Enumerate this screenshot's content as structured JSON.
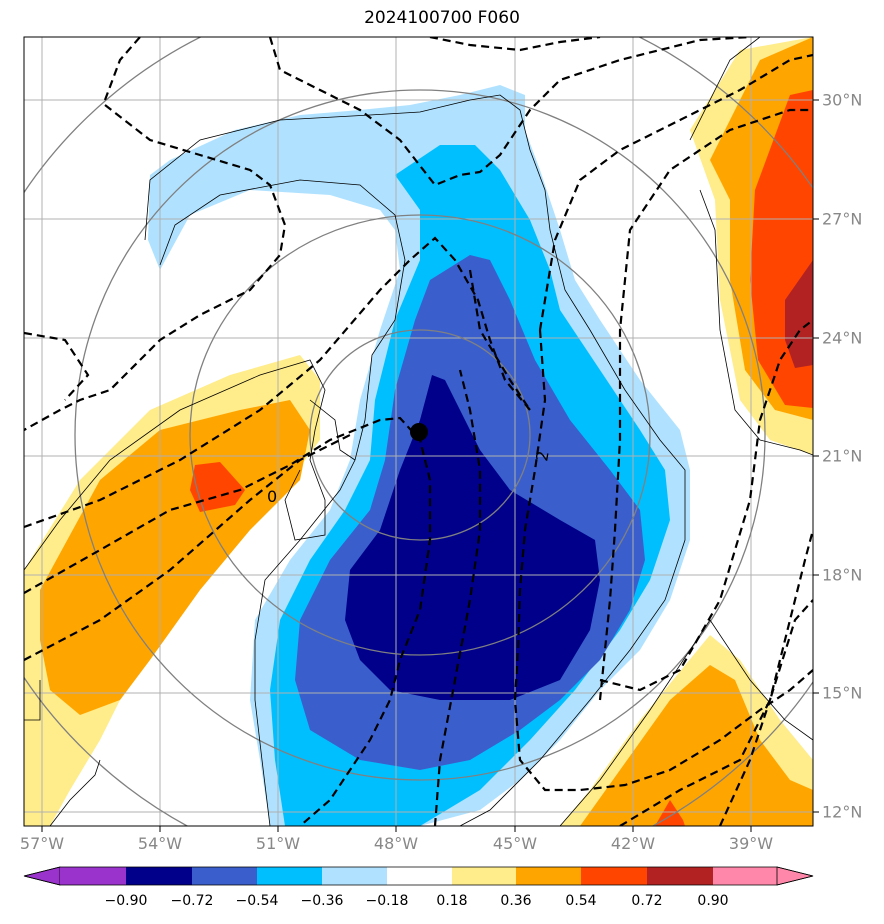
{
  "title": "2024100700 F060",
  "chart_data": {
    "type": "heatmap",
    "title": "2024100700 F060",
    "lon_ticks": [
      "57°W",
      "54°W",
      "51°W",
      "48°W",
      "45°W",
      "42°W",
      "39°W"
    ],
    "lat_ticks": [
      "30°N",
      "27°N",
      "24°N",
      "21°N",
      "18°N",
      "15°N",
      "12°N"
    ],
    "contour_labels": [
      "0",
      "2"
    ],
    "grid": true,
    "colorbar": {
      "ticks": [
        "−0.90",
        "−0.72",
        "−0.54",
        "−0.36",
        "−0.18",
        "0.18",
        "0.36",
        "0.54",
        "0.72",
        "0.90"
      ],
      "colors": [
        "#9933cc",
        "#00008b",
        "#3a5fcd",
        "#00bfff",
        "#b0e2ff",
        "#ffffff",
        "#ffec8b",
        "#ffa500",
        "#ff4500",
        "#b22222",
        "#ff88aa"
      ],
      "placement": "bottom"
    },
    "marker": {
      "lon": -47.5,
      "lat": 21.6
    }
  }
}
